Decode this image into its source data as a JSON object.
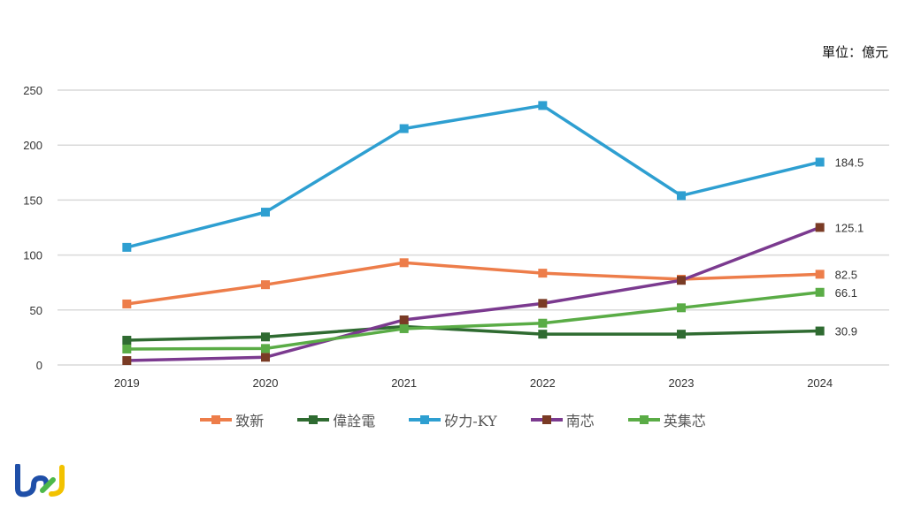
{
  "unit_label": "單位：億元",
  "logo_text": "tej",
  "chart_data": {
    "type": "line",
    "categories": [
      "2019",
      "2020",
      "2021",
      "2022",
      "2023",
      "2024"
    ],
    "ylim": [
      0,
      250
    ],
    "yticks": [
      "0",
      "50",
      "100",
      "150",
      "200",
      "250"
    ],
    "grid": true,
    "legend": "bottom",
    "series": [
      {
        "name": "致新",
        "color": "#ed7d4a",
        "marker": "#ed7d4a",
        "values": [
          55.5,
          73,
          93,
          83.5,
          78,
          82.5
        ],
        "end_label": "82.5"
      },
      {
        "name": "偉詮電",
        "color": "#2f6b31",
        "marker": "#2f6b31",
        "values": [
          22.5,
          25.5,
          35,
          28,
          28,
          30.9
        ],
        "end_label": "30.9"
      },
      {
        "name": "矽力-KY",
        "color": "#2e9fd1",
        "marker": "#2e9fd1",
        "values": [
          107,
          139,
          215,
          236,
          154,
          184.5
        ],
        "end_label": "184.5"
      },
      {
        "name": "南芯",
        "color": "#7b3a8f",
        "marker": "#7a3b25",
        "values": [
          4,
          7,
          41,
          56,
          77,
          125.1
        ],
        "end_label": "125.1"
      },
      {
        "name": "英集芯",
        "color": "#5aac46",
        "marker": "#5aac46",
        "values": [
          14.5,
          15,
          33,
          38,
          52,
          66.1
        ],
        "end_label": "66.1"
      }
    ]
  }
}
